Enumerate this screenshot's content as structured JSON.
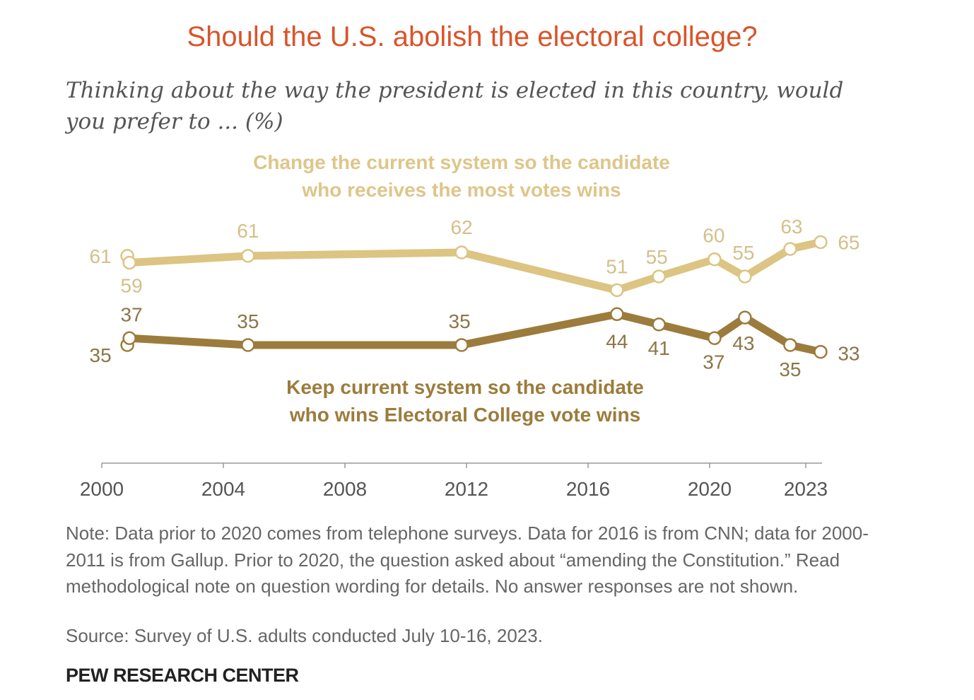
{
  "chart_data": {
    "type": "line",
    "title": "Should the U.S. abolish the electoral college?",
    "subtitle": "Thinking about the way the president is elected in this country, would you prefer to ... (%)",
    "xlabel": "",
    "ylabel": "",
    "xlim": [
      2000,
      2023.7
    ],
    "x_ticks": [
      "2000",
      "2004",
      "2008",
      "2012",
      "2016",
      "2020",
      "2023"
    ],
    "grid": false,
    "series": [
      {
        "name": "Change the current system so the candidate who receives the most votes wins",
        "color": "#dcc482",
        "x": [
          2000.84,
          2000.91,
          2004.81,
          2011.84,
          2016.95,
          2018.33,
          2020.16,
          2021.16,
          2022.65,
          2023.65
        ],
        "values": [
          61,
          59,
          61,
          62,
          51,
          55,
          60,
          55,
          63,
          65
        ]
      },
      {
        "name": "Keep current system so the candidate who wins Electoral College vote wins",
        "color": "#9c7c3c",
        "x": [
          2000.84,
          2000.91,
          2004.81,
          2011.84,
          2016.95,
          2018.33,
          2020.16,
          2021.16,
          2022.65,
          2023.65
        ],
        "values": [
          35,
          37,
          35,
          35,
          44,
          41,
          37,
          43,
          35,
          33
        ]
      }
    ],
    "series_label_lines": [
      [
        "Change the current system so the candidate",
        "who receives the most votes wins"
      ],
      [
        "Keep current system so the candidate",
        "who wins Electoral College vote wins"
      ]
    ]
  },
  "note": "Note: Data prior to 2020 comes from telephone surveys. Data for 2016 is from CNN; data for 2000-2011 is from Gallup. Prior to 2020, the question asked about “amending the Constitution.” Read methodological note on question wording for details. No answer responses are not shown.",
  "source": "Source: Survey of U.S. adults conducted July 10-16, 2023.",
  "brand": "PEW RESEARCH CENTER",
  "colors": {
    "title": "#d9542b",
    "change_label": "#d4c08a",
    "keep_label": "#8c7648"
  }
}
